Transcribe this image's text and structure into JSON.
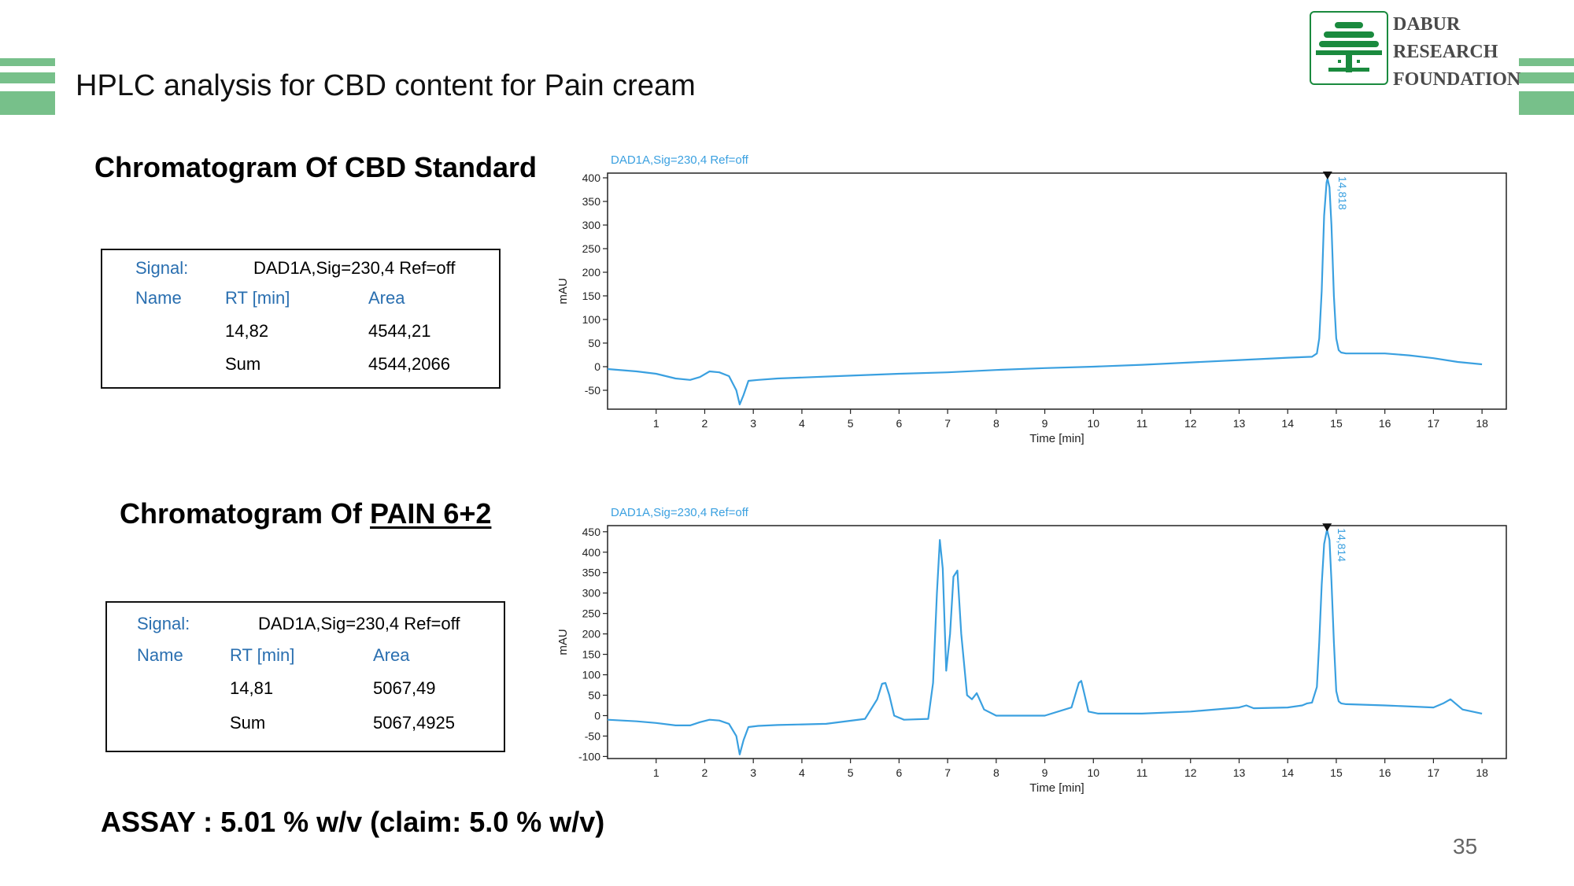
{
  "slide": {
    "title": "HPLC analysis for CBD content for Pain cream",
    "page_number": "35",
    "assay": "ASSAY : 5.01 % w/v (claim: 5.0 % w/v)",
    "accent_color": "#77c08a",
    "trace_color": "#3aa0e0"
  },
  "logo": {
    "icon": "tree-logo-icon",
    "line1": "DABUR",
    "line2": "RESEARCH",
    "line3": "FOUNDATION"
  },
  "sections": [
    {
      "heading": "Chromatogram Of CBD Standard",
      "heading_prefix": "",
      "heading_underlined": "",
      "table": {
        "signal_label": "Signal:",
        "signal_value": "DAD1A,Sig=230,4  Ref=off",
        "col_name": "Name",
        "col_rt": "RT [min]",
        "col_area": "Area",
        "rt": "14,82",
        "area": "4544,21",
        "sum_label": "Sum",
        "sum_value": "4544,2066"
      }
    },
    {
      "heading": "",
      "heading_prefix": "Chromatogram Of ",
      "heading_underlined": "PAIN 6+2",
      "table": {
        "signal_label": "Signal:",
        "signal_value": "DAD1A,Sig=230,4  Ref=off",
        "col_name": "Name",
        "col_rt": "RT [min]",
        "col_area": "Area",
        "rt": "14,81",
        "area": "5067,49",
        "sum_label": "Sum",
        "sum_value": "5067,4925"
      }
    }
  ],
  "chart_data": [
    {
      "type": "line",
      "title": "DAD1A,Sig=230,4  Ref=off",
      "xlabel": "Time [min]",
      "ylabel": "mAU",
      "xlim": [
        0,
        18.5
      ],
      "ylim": [
        -90,
        410
      ],
      "xticks": [
        1,
        2,
        3,
        4,
        5,
        6,
        7,
        8,
        9,
        10,
        11,
        12,
        13,
        14,
        15,
        16,
        17,
        18
      ],
      "yticks": [
        -50,
        0,
        50,
        100,
        150,
        200,
        250,
        300,
        350,
        400
      ],
      "grid": false,
      "peak_label": "14,818",
      "peak_marker_x": 14.82,
      "peak_marker_y": 400,
      "series": [
        {
          "x": [
            0,
            0.6,
            1.0,
            1.4,
            1.7,
            1.9,
            2.1,
            2.3,
            2.5,
            2.65,
            2.72,
            2.8,
            2.9,
            3.1,
            3.5,
            4.0,
            5.0,
            6.0,
            7.0,
            8.0,
            9.0,
            10.0,
            11.0,
            12.0,
            13.0,
            14.0,
            14.5,
            14.6,
            14.65,
            14.7,
            14.75,
            14.8,
            14.82,
            14.86,
            14.9,
            14.95,
            15.0,
            15.05,
            15.1,
            15.2,
            16.0,
            16.5,
            17.0,
            17.5,
            18.0
          ],
          "y": [
            -5,
            -10,
            -15,
            -25,
            -28,
            -22,
            -10,
            -12,
            -20,
            -50,
            -80,
            -60,
            -30,
            -28,
            -25,
            -23,
            -19,
            -15,
            -12,
            -7,
            -3,
            0,
            4,
            9,
            14,
            19,
            21,
            28,
            60,
            160,
            320,
            390,
            398,
            380,
            300,
            150,
            60,
            35,
            30,
            28,
            28,
            24,
            18,
            10,
            5
          ]
        }
      ]
    },
    {
      "type": "line",
      "title": "DAD1A,Sig=230,4  Ref=off",
      "xlabel": "Time [min]",
      "ylabel": "mAU",
      "xlim": [
        0,
        18.5
      ],
      "ylim": [
        -105,
        465
      ],
      "xticks": [
        1,
        2,
        3,
        4,
        5,
        6,
        7,
        8,
        9,
        10,
        11,
        12,
        13,
        14,
        15,
        16,
        17,
        18
      ],
      "yticks": [
        -100,
        -50,
        0,
        50,
        100,
        150,
        200,
        250,
        300,
        350,
        400,
        450
      ],
      "grid": false,
      "peak_label": "14,814",
      "peak_marker_x": 14.81,
      "peak_marker_y": 455,
      "series": [
        {
          "x": [
            0,
            0.6,
            1.0,
            1.4,
            1.7,
            1.9,
            2.1,
            2.3,
            2.5,
            2.65,
            2.72,
            2.8,
            2.9,
            3.1,
            3.5,
            4.5,
            5.3,
            5.55,
            5.65,
            5.72,
            5.8,
            5.9,
            6.1,
            6.6,
            6.7,
            6.78,
            6.84,
            6.9,
            6.97,
            7.05,
            7.12,
            7.2,
            7.28,
            7.4,
            7.5,
            7.6,
            7.75,
            8.0,
            9.0,
            9.55,
            9.7,
            9.75,
            9.8,
            9.9,
            10.1,
            11.0,
            12.0,
            13.0,
            13.15,
            13.3,
            14.0,
            14.3,
            14.4,
            14.5,
            14.6,
            14.65,
            14.7,
            14.75,
            14.8,
            14.81,
            14.86,
            14.9,
            14.95,
            15.0,
            15.05,
            15.1,
            15.2,
            16.0,
            17.0,
            17.2,
            17.35,
            17.6,
            18.0
          ],
          "y": [
            -10,
            -14,
            -18,
            -24,
            -24,
            -16,
            -10,
            -12,
            -20,
            -50,
            -95,
            -60,
            -28,
            -25,
            -23,
            -20,
            -8,
            40,
            78,
            80,
            50,
            0,
            -10,
            -8,
            80,
            300,
            430,
            360,
            110,
            200,
            340,
            355,
            200,
            50,
            40,
            55,
            15,
            0,
            0,
            20,
            80,
            85,
            60,
            10,
            5,
            5,
            10,
            20,
            25,
            18,
            20,
            25,
            30,
            32,
            70,
            180,
            320,
            420,
            450,
            455,
            430,
            330,
            180,
            60,
            35,
            30,
            28,
            25,
            20,
            30,
            40,
            15,
            5
          ]
        }
      ]
    }
  ]
}
